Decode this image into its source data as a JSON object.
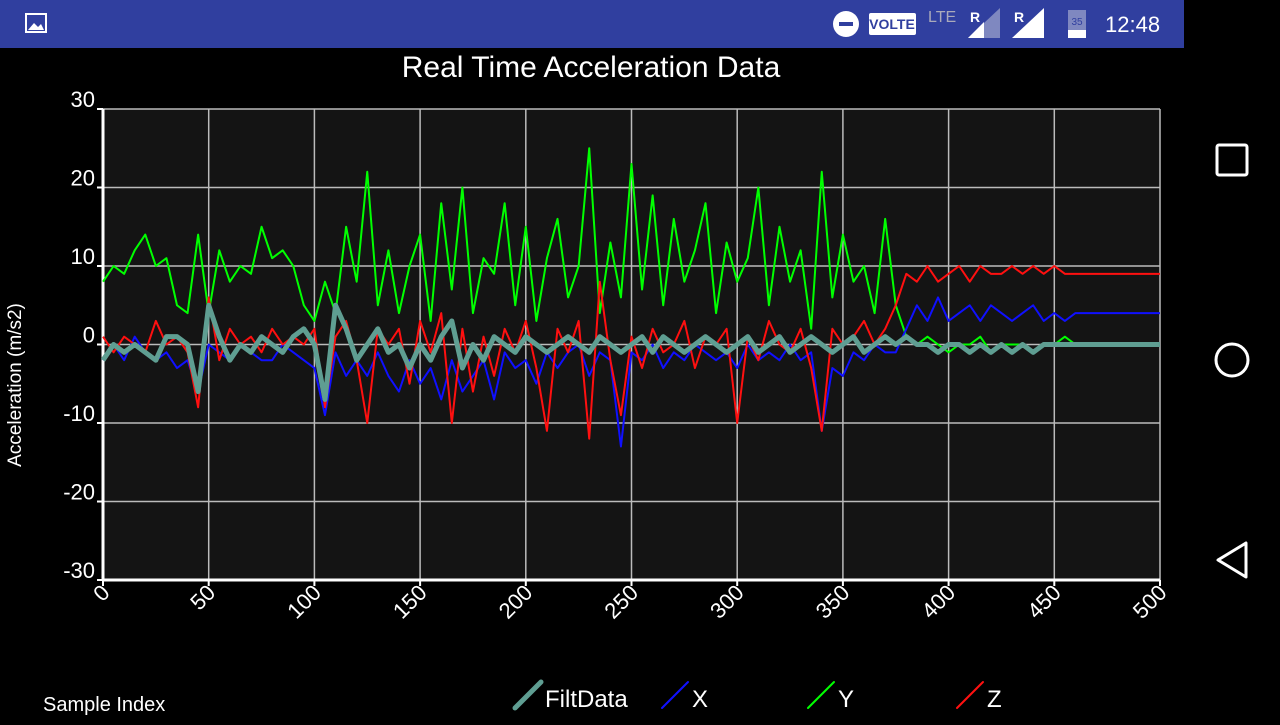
{
  "status_bar": {
    "network": "VOLTE",
    "lte": "LTE",
    "roaming_1": "R",
    "roaming_2": "R",
    "battery": "35",
    "time": "12:48"
  },
  "chart_data": {
    "type": "line",
    "title": "Real Time Acceleration Data",
    "x_label": "Sample Index",
    "y_label": "Acceleration (m/s2)",
    "x": [
      0,
      5,
      10,
      15,
      20,
      25,
      30,
      35,
      40,
      45,
      50,
      55,
      60,
      65,
      70,
      75,
      80,
      85,
      90,
      95,
      100,
      105,
      110,
      115,
      120,
      125,
      130,
      135,
      140,
      145,
      150,
      155,
      160,
      165,
      170,
      175,
      180,
      185,
      190,
      195,
      200,
      205,
      210,
      215,
      220,
      225,
      230,
      235,
      240,
      245,
      250,
      255,
      260,
      265,
      270,
      275,
      280,
      285,
      290,
      295,
      300,
      305,
      310,
      315,
      320,
      325,
      330,
      335,
      340,
      345,
      350,
      355,
      360,
      365,
      370,
      375,
      380,
      385,
      390,
      395,
      400,
      405,
      410,
      415,
      420,
      425,
      430,
      435,
      440,
      445,
      450,
      455,
      460,
      465,
      470,
      475,
      480,
      485,
      490,
      495,
      500
    ],
    "series": [
      {
        "name": "FiltData",
        "color": "#5f9e92",
        "values": [
          -2,
          0,
          -1,
          0,
          -1,
          -2,
          1,
          1,
          0,
          -6,
          5,
          1,
          -2,
          0,
          -1,
          1,
          0,
          -1,
          1,
          2,
          0,
          -7,
          5,
          2,
          -2,
          0,
          2,
          -1,
          0,
          -3,
          0,
          -2,
          1,
          3,
          -3,
          0,
          -2,
          1,
          0,
          -1,
          1,
          0,
          -1,
          0,
          1,
          0,
          -1,
          1,
          0,
          -1,
          0,
          1,
          -1,
          1,
          0,
          -1,
          0,
          1,
          0,
          -1,
          0,
          1,
          -1,
          0,
          1,
          -1,
          0,
          1,
          0,
          -1,
          0,
          1,
          -1,
          0,
          1,
          0,
          1,
          0,
          0,
          -1,
          0,
          0,
          -1,
          0,
          -1,
          0,
          -1,
          0,
          -1,
          0,
          0,
          0,
          0,
          0,
          0,
          0,
          0,
          0,
          0,
          0,
          0
        ]
      },
      {
        "name": "X",
        "color": "#1010ff",
        "values": [
          -2,
          0,
          -2,
          1,
          -1,
          -2,
          -1,
          -3,
          -2,
          -6,
          0,
          -1,
          -2,
          0,
          -1,
          -2,
          -2,
          0,
          -1,
          -2,
          -3,
          -9,
          -1,
          -4,
          -2,
          -4,
          -1,
          -4,
          -6,
          -2,
          -5,
          -3,
          -7,
          -2,
          -6,
          -4,
          -2,
          -7,
          -1,
          -3,
          -2,
          -5,
          -1,
          -3,
          -1,
          0,
          -4,
          -1,
          -2,
          -13,
          -1,
          -2,
          0,
          -3,
          -1,
          -2,
          0,
          -1,
          -2,
          -1,
          -3,
          0,
          -2,
          -1,
          -2,
          0,
          -2,
          -1,
          -11,
          -3,
          -4,
          -1,
          -2,
          0,
          -1,
          -1,
          2,
          5,
          3,
          6,
          3,
          4,
          5,
          3,
          5,
          4,
          3,
          4,
          5,
          3,
          4,
          3,
          4,
          4,
          4,
          4,
          4,
          4,
          4,
          4,
          4
        ]
      },
      {
        "name": "Y",
        "color": "#00ff00",
        "values": [
          8,
          10,
          9,
          12,
          14,
          10,
          11,
          5,
          4,
          14,
          4,
          12,
          8,
          10,
          9,
          15,
          11,
          12,
          10,
          5,
          3,
          8,
          4,
          15,
          8,
          22,
          5,
          12,
          4,
          10,
          14,
          3,
          18,
          7,
          20,
          4,
          11,
          9,
          18,
          5,
          15,
          3,
          11,
          16,
          6,
          10,
          25,
          4,
          13,
          6,
          23,
          7,
          19,
          5,
          16,
          8,
          12,
          18,
          4,
          13,
          8,
          11,
          20,
          5,
          15,
          8,
          12,
          2,
          22,
          6,
          14,
          8,
          10,
          4,
          16,
          5,
          1,
          0,
          1,
          0,
          -1,
          0,
          0,
          1,
          -1,
          0,
          0,
          0,
          -1,
          0,
          0,
          1,
          0,
          0,
          0,
          0,
          0,
          0,
          0,
          0,
          0
        ]
      },
      {
        "name": "Z",
        "color": "#ff1010",
        "values": [
          1,
          -1,
          1,
          0,
          -1,
          3,
          0,
          1,
          -1,
          -8,
          6,
          -2,
          2,
          0,
          1,
          -1,
          2,
          0,
          1,
          0,
          2,
          -8,
          1,
          3,
          -2,
          -10,
          2,
          0,
          2,
          -5,
          3,
          -1,
          4,
          -10,
          2,
          -6,
          1,
          -4,
          2,
          -1,
          3,
          -3,
          -11,
          2,
          -1,
          3,
          -12,
          8,
          -2,
          -9,
          1,
          -3,
          2,
          -1,
          0,
          3,
          -3,
          1,
          0,
          2,
          -10,
          1,
          -2,
          3,
          0,
          -1,
          2,
          -3,
          -11,
          2,
          0,
          1,
          3,
          0,
          2,
          5,
          9,
          8,
          10,
          8,
          9,
          10,
          8,
          10,
          9,
          9,
          10,
          9,
          10,
          9,
          10,
          9,
          9,
          9,
          9,
          9,
          9,
          9,
          9,
          9,
          9
        ]
      }
    ],
    "xlim": [
      0,
      500
    ],
    "xticks": [
      0,
      50,
      100,
      150,
      200,
      250,
      300,
      350,
      400,
      450,
      500
    ],
    "ylim": [
      -30,
      30
    ],
    "yticks": [
      30,
      20,
      10,
      0,
      -10,
      -20,
      -30
    ],
    "grid": true,
    "legend": "bottom"
  }
}
